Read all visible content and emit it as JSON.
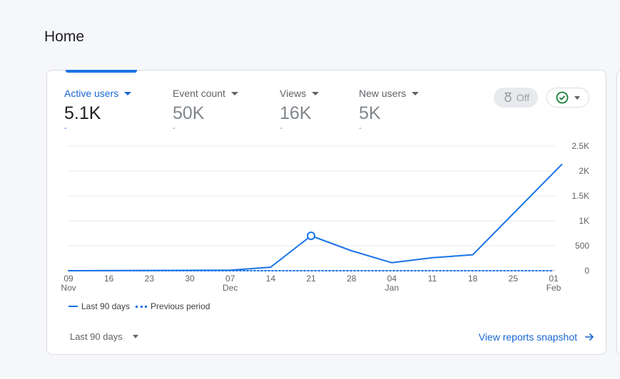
{
  "page": {
    "title": "Home"
  },
  "metrics": [
    {
      "label": "Active users",
      "value": "5.1K",
      "delta": "-"
    },
    {
      "label": "Event count",
      "value": "50K",
      "delta": "-"
    },
    {
      "label": "Views",
      "value": "16K",
      "delta": "-"
    },
    {
      "label": "New users",
      "value": "5K",
      "delta": "-"
    }
  ],
  "insights": {
    "label": "Off",
    "icon": "insights-badge-icon"
  },
  "status": {
    "icon": "check-circle-icon",
    "color": "#188038"
  },
  "colors": {
    "accent": "#1a73e8",
    "link": "#1967d2"
  },
  "chart_data": {
    "type": "line",
    "x_ticks": [
      {
        "day": "09",
        "month": "Nov"
      },
      {
        "day": "16",
        "month": ""
      },
      {
        "day": "23",
        "month": ""
      },
      {
        "day": "30",
        "month": ""
      },
      {
        "day": "07",
        "month": "Dec"
      },
      {
        "day": "14",
        "month": ""
      },
      {
        "day": "21",
        "month": ""
      },
      {
        "day": "28",
        "month": ""
      },
      {
        "day": "04",
        "month": "Jan"
      },
      {
        "day": "11",
        "month": ""
      },
      {
        "day": "18",
        "month": ""
      },
      {
        "day": "25",
        "month": ""
      },
      {
        "day": "01",
        "month": "Feb"
      }
    ],
    "y_ticks": [
      "0",
      "500",
      "1K",
      "1.5K",
      "2K",
      "2.5K"
    ],
    "ylim": [
      0,
      2500
    ],
    "series": [
      {
        "name": "Last 90 days",
        "style": "solid",
        "x": [
          0,
          4,
          5,
          6,
          7,
          8,
          9,
          10,
          12.2
        ],
        "values": [
          0,
          10,
          70,
          700,
          400,
          160,
          260,
          320,
          2130
        ]
      },
      {
        "name": "Previous period",
        "style": "dotted",
        "x": [
          0,
          12
        ],
        "values": [
          0,
          0
        ]
      }
    ],
    "highlight_point": {
      "x": 6,
      "value": 700
    },
    "grid": true
  },
  "footer": {
    "range_label": "Last 90 days",
    "link_label": "View reports snapshot"
  }
}
